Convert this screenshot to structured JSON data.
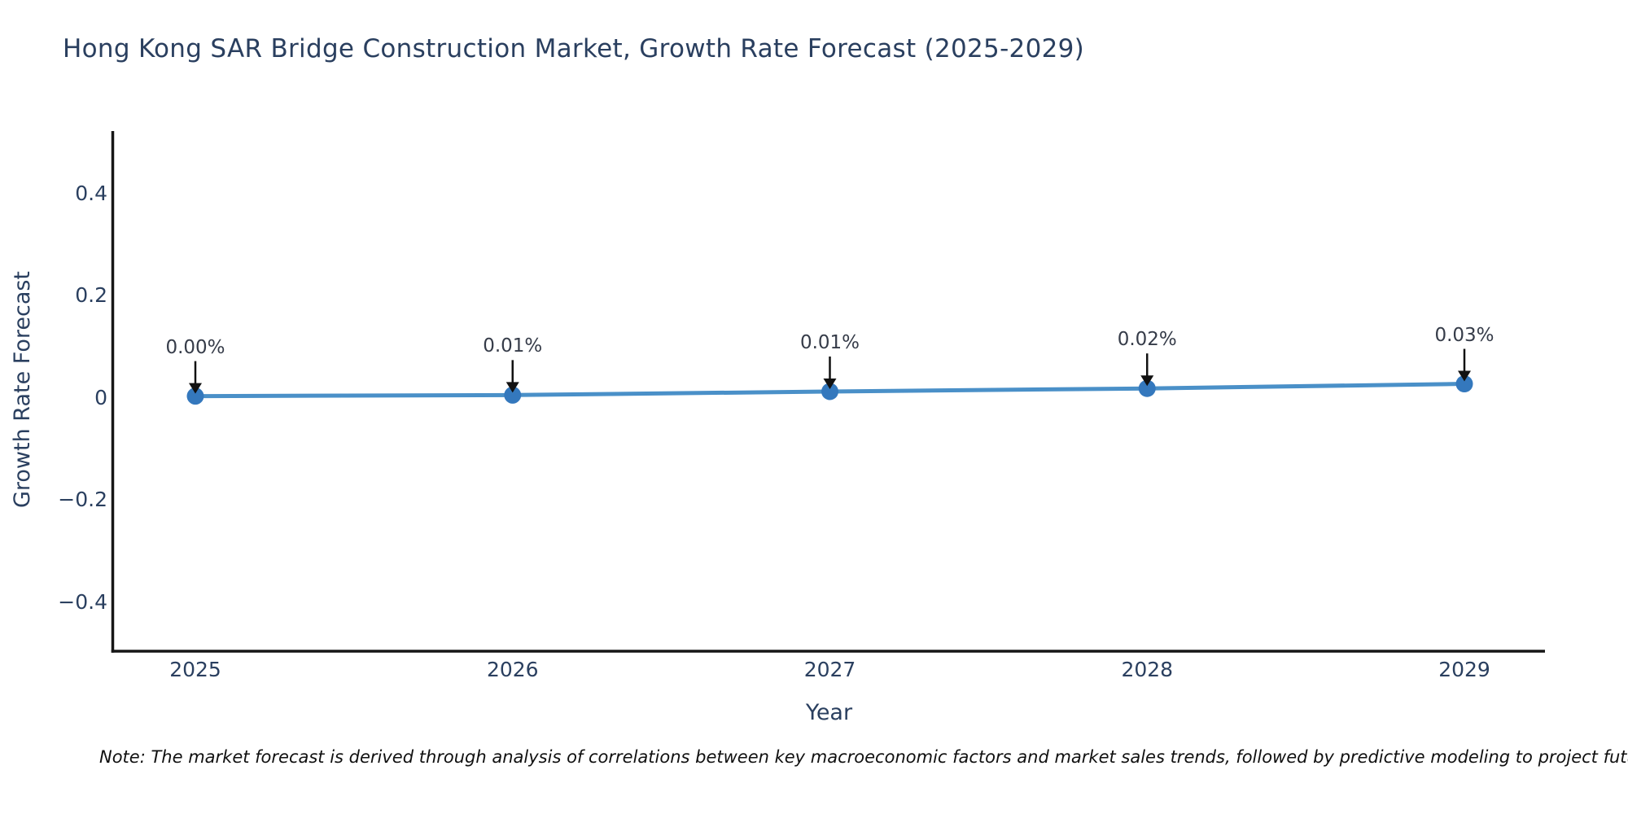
{
  "chart_data": {
    "type": "line",
    "title": "Hong Kong SAR Bridge Construction Market, Growth Rate Forecast (2025-2029)",
    "xlabel": "Year",
    "ylabel": "Growth Rate Forecast",
    "x": [
      "2025",
      "2026",
      "2027",
      "2028",
      "2029"
    ],
    "series": [
      {
        "name": "Growth Rate Forecast",
        "values": [
          0.003,
          0.005,
          0.012,
          0.018,
          0.027
        ],
        "point_labels": [
          "0.00%",
          "0.01%",
          "0.01%",
          "0.02%",
          "0.03%"
        ]
      }
    ],
    "ylim": [
      -0.5,
      0.52
    ],
    "yticks": {
      "values": [
        0.4,
        0.2,
        0,
        -0.2,
        -0.4
      ],
      "labels": [
        "0.4",
        "0.2",
        "0",
        "−0.2",
        "−0.4"
      ]
    },
    "grid": false,
    "legend": false,
    "annotation_arrows": true,
    "line_color": "#4a90c8",
    "marker_color": "#3478bd",
    "axis_color": "#161616",
    "annotation_color": "#363c49",
    "background_color": "#ffffff"
  },
  "note": {
    "text": "Note: The market forecast is derived through analysis of correlations between key macroeconomic factors and market sales trends, followed by predictive modeling to project future sales"
  }
}
